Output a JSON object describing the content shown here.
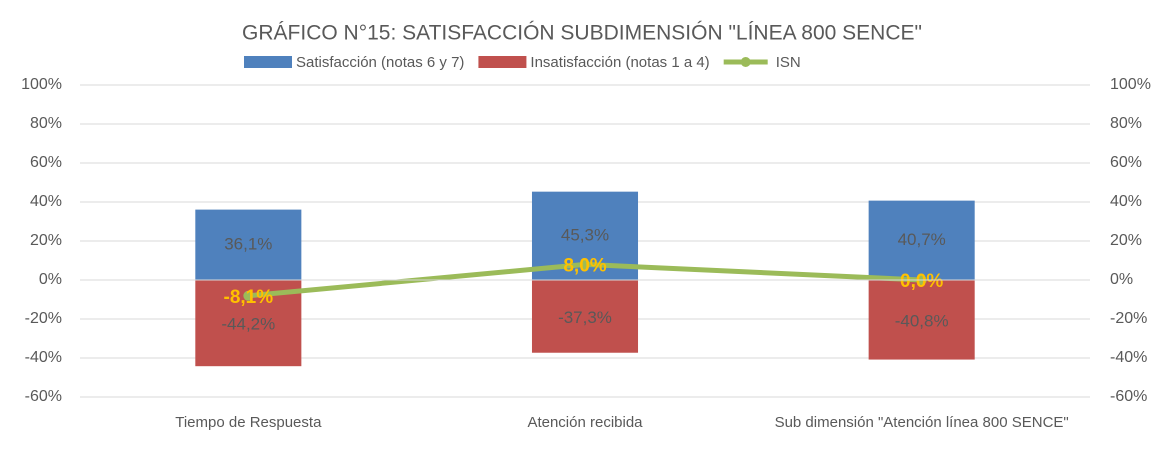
{
  "chart_data": {
    "type": "bar",
    "title": "GRÁFICO N°15: SATISFACCIÓN SUBDIMENSIÓN \"LÍNEA 800 SENCE\"",
    "categories": [
      "Tiempo de Respuesta",
      "Atención recibida",
      "Sub dimensión \"Atención línea 800 SENCE\""
    ],
    "series": [
      {
        "name": "Satisfacción (notas 6 y 7)",
        "type": "bar",
        "color": "#4f81bd",
        "values": [
          36.1,
          45.3,
          40.7
        ],
        "value_labels": [
          "36,1%",
          "45,3%",
          "40,7%"
        ]
      },
      {
        "name": "Insatisfacción (notas 1 a 4)",
        "type": "bar",
        "color": "#c0504d",
        "values": [
          -44.2,
          -37.3,
          -40.8
        ],
        "value_labels": [
          "-44,2%",
          "-37,3%",
          "-40,8%"
        ]
      },
      {
        "name": "ISN",
        "type": "line",
        "color": "#9bbb59",
        "values": [
          -8.1,
          8.0,
          0.0
        ],
        "value_labels": [
          "-8,1%",
          "8,0%",
          "0,0%"
        ]
      }
    ],
    "ylim": [
      -60,
      100
    ],
    "yticks": [
      {
        "value": -60,
        "label": "-60%"
      },
      {
        "value": -40,
        "label": "-40%"
      },
      {
        "value": -20,
        "label": "-20%"
      },
      {
        "value": 0,
        "label": "0%"
      },
      {
        "value": 20,
        "label": "20%"
      },
      {
        "value": 40,
        "label": "40%"
      },
      {
        "value": 60,
        "label": "60%"
      },
      {
        "value": 80,
        "label": "80%"
      },
      {
        "value": 100,
        "label": "100%"
      }
    ],
    "y2lim": [
      -60,
      100
    ],
    "y2ticks": [
      {
        "value": -60,
        "label": "-60%"
      },
      {
        "value": -40,
        "label": "-40%"
      },
      {
        "value": -20,
        "label": "-20%"
      },
      {
        "value": 0,
        "label": "0%"
      },
      {
        "value": 20,
        "label": "20%"
      },
      {
        "value": 40,
        "label": "40%"
      },
      {
        "value": 60,
        "label": "60%"
      },
      {
        "value": 80,
        "label": "80%"
      },
      {
        "value": 100,
        "label": "100%"
      }
    ],
    "grid": true
  }
}
